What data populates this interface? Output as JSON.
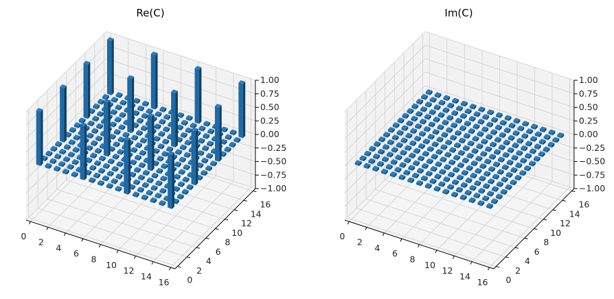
{
  "chart_data": [
    {
      "type": "bar3d",
      "title": "Re(C)",
      "matrix_size": 16,
      "default_value": 0,
      "nonzero": [
        [
          0,
          0,
          1
        ],
        [
          0,
          5,
          1
        ],
        [
          0,
          10,
          1
        ],
        [
          0,
          15,
          1
        ],
        [
          5,
          0,
          1
        ],
        [
          5,
          5,
          1
        ],
        [
          5,
          10,
          1
        ],
        [
          5,
          15,
          1
        ],
        [
          10,
          0,
          1
        ],
        [
          10,
          5,
          1
        ],
        [
          10,
          10,
          1
        ],
        [
          10,
          15,
          1
        ],
        [
          15,
          0,
          1
        ],
        [
          15,
          5,
          1
        ],
        [
          15,
          10,
          1
        ],
        [
          15,
          15,
          1
        ]
      ],
      "xticks": [
        "0",
        "2",
        "4",
        "6",
        "8",
        "10",
        "12",
        "14",
        "16"
      ],
      "yticks": [
        "0",
        "2",
        "4",
        "6",
        "8",
        "10",
        "12",
        "14",
        "16"
      ],
      "zticks": [
        "−1.00",
        "−0.75",
        "−0.50",
        "−0.25",
        "0.00",
        "0.25",
        "0.50",
        "0.75",
        "1.00"
      ],
      "zlim": [
        -1,
        1
      ],
      "grid": true
    },
    {
      "type": "bar3d",
      "title": "Im(C)",
      "matrix_size": 16,
      "default_value": 0,
      "nonzero": [],
      "xticks": [
        "0",
        "2",
        "4",
        "6",
        "8",
        "10",
        "12",
        "14",
        "16"
      ],
      "yticks": [
        "0",
        "2",
        "4",
        "6",
        "8",
        "10",
        "12",
        "14",
        "16"
      ],
      "zticks": [
        "−1.00",
        "−0.75",
        "−0.50",
        "−0.25",
        "0.00",
        "0.25",
        "0.50",
        "0.75",
        "1.00"
      ],
      "zlim": [
        -1,
        1
      ],
      "grid": true
    }
  ],
  "colors": {
    "bar_top": "#2a7cbc",
    "bar_front": "#1f6aa5",
    "bar_side": "#0f4067",
    "pane": "#f2f2f2",
    "grid": "#cfcfcf"
  }
}
